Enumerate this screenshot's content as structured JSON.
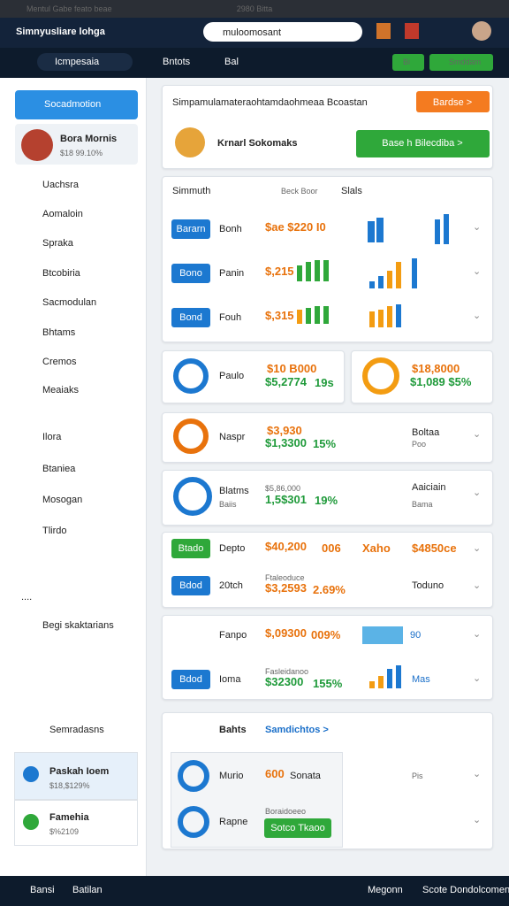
{
  "header": {
    "window_title": "Mentul Gabe feato beae",
    "tab_title": "2980 Bitta",
    "app_name": "Simnyusliare lohga",
    "search": "muloomosant"
  },
  "nav": {
    "menu": "Icmpesaia",
    "item1": "Bntots",
    "item2": "Bal",
    "button1": "Bi",
    "button2": "Smddam"
  },
  "sidebar": {
    "primary_button": "Socadmotion",
    "profile": {
      "name": "Bora Mornis",
      "stat": "$18 99.10%"
    },
    "menu": [
      "Uachsra",
      "Aomaloin",
      "Spraka",
      "Btcobiria",
      "Sacmodulan",
      "Bhtams",
      "Cremos",
      "Meaiaks"
    ],
    "menu2": [
      "Ilora",
      "Btaniea",
      "Mosogan",
      "Tlirdo"
    ],
    "more": "....",
    "section": "Begi skaktarians",
    "bottom": "Semradasns",
    "accounts": [
      {
        "name": "Paskah Ioem",
        "stat": "$18,$129%"
      },
      {
        "name": "Famehia",
        "stat": "$%2109"
      }
    ]
  },
  "banner": {
    "text": "Simpamulamateraohtamdaohmeaa Bcoastan",
    "button": "Bardse  >",
    "name": "Krnarl Sokomaks",
    "cta": "Base h Bilecdiba  >"
  },
  "table": {
    "headers": [
      "Simmuth",
      "Beck Boor",
      "Slals"
    ],
    "rows": [
      {
        "tag": "Bararn",
        "label": "Bonh",
        "amount": "$ae $220 I0"
      },
      {
        "tag": "Bono",
        "label": "Panin",
        "amount": "$,215"
      },
      {
        "tag": "Bond",
        "label": "Fouh",
        "amount": "$,315"
      }
    ]
  },
  "stats1": {
    "label": "Paulo",
    "top": "$10 B000",
    "value": "$5,2774",
    "pct": "19s",
    "right_top": "$18,8000",
    "right_value": "$1,089 $5%"
  },
  "stats2": {
    "label": "Naspr",
    "top": "$3,930",
    "value": "$1,3300",
    "pct": "15%",
    "right_title": "Boltaa",
    "right_sub": "Poo"
  },
  "stats3": {
    "title": "Blatms",
    "sub": "Baiis",
    "top": "$5,86,000",
    "value": "1,5$301",
    "pct": "19%",
    "right_title": "Aaiciain",
    "right_sub": "Bama"
  },
  "list1": [
    {
      "tag": "Btado",
      "label": "Depto",
      "amount": "$40,200",
      "extra": "006",
      "brand": "Xaho",
      "right": "$4850ce"
    },
    {
      "tag": "Bdod",
      "label": "20tch",
      "top": "Ftaleoduce",
      "amount": "$3,2593",
      "extra": "2.69%",
      "right": "Toduno"
    }
  ],
  "list2": [
    {
      "label": "Fanpo",
      "amount": "$,09300",
      "extra": "009%",
      "right": "90"
    },
    {
      "tag": "Bdod",
      "label": "Ioma",
      "top": "Fasleidanoo",
      "amount": "$32300",
      "extra": "155%",
      "right": "Mas"
    }
  ],
  "panel": {
    "title": "Bahts",
    "link": "Samdichtos >",
    "rows": [
      {
        "label": "Murio",
        "amount": "600",
        "extra": "Sonata",
        "right": "Pis"
      },
      {
        "label": "Rapne",
        "top": "Boraidoeeo",
        "button": "Sotco Tkaoo"
      }
    ]
  },
  "footer": {
    "left1": "Bansi",
    "left2": "Batilan",
    "right1": "Megonn",
    "right2": "Scote Dondolcomen"
  }
}
